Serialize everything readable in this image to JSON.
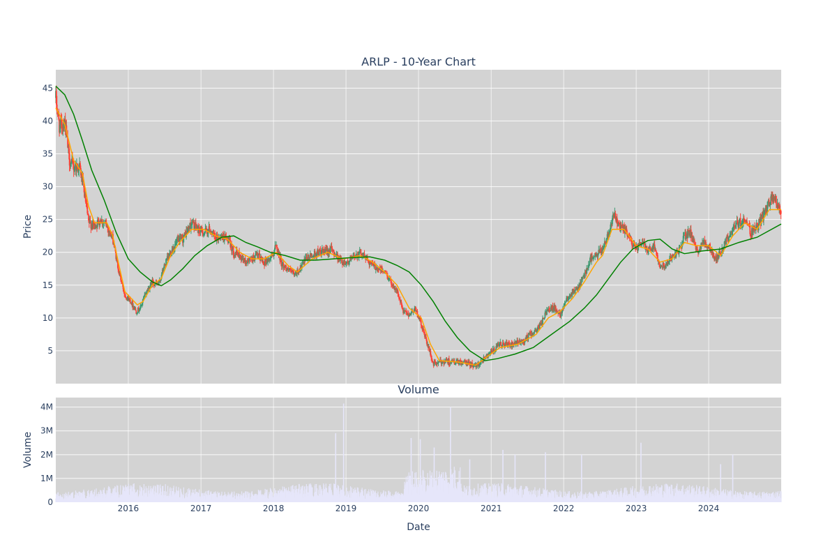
{
  "chart_data": [
    {
      "type": "candlestick",
      "title": "ARLP - 10-Year Chart",
      "ylabel": "Price",
      "ylim": [
        0,
        47.8
      ],
      "yticks": [
        5,
        10,
        15,
        20,
        25,
        30,
        35,
        40,
        45
      ],
      "x_range": [
        "2015-01-01",
        "2024-12-31"
      ],
      "up_color": "#3d9970",
      "down_color": "#ff4136",
      "price_path": [
        [
          "2015-01-01",
          43.5
        ],
        [
          "2015-01-20",
          39.0
        ],
        [
          "2015-02-15",
          40.0
        ],
        [
          "2015-03-10",
          34.0
        ],
        [
          "2015-04-01",
          33.0
        ],
        [
          "2015-05-01",
          33.0
        ],
        [
          "2015-05-20",
          30.0
        ],
        [
          "2015-06-15",
          24.5
        ],
        [
          "2015-07-15",
          24.0
        ],
        [
          "2015-08-15",
          25.0
        ],
        [
          "2015-09-15",
          24.0
        ],
        [
          "2015-10-15",
          22.0
        ],
        [
          "2015-11-15",
          17.0
        ],
        [
          "2015-12-15",
          13.5
        ],
        [
          "2016-01-15",
          12.5
        ],
        [
          "2016-02-10",
          11.0
        ],
        [
          "2016-03-01",
          11.5
        ],
        [
          "2016-04-01",
          14.0
        ],
        [
          "2016-05-01",
          15.5
        ],
        [
          "2016-06-01",
          15.0
        ],
        [
          "2016-07-01",
          18.0
        ],
        [
          "2016-08-01",
          20.0
        ],
        [
          "2016-09-01",
          21.5
        ],
        [
          "2016-10-01",
          22.0
        ],
        [
          "2016-11-15",
          24.5
        ],
        [
          "2016-12-15",
          23.5
        ],
        [
          "2017-01-15",
          23.0
        ],
        [
          "2017-02-15",
          23.5
        ],
        [
          "2017-03-15",
          22.0
        ],
        [
          "2017-04-15",
          22.5
        ],
        [
          "2017-05-15",
          22.0
        ],
        [
          "2017-06-15",
          20.0
        ],
        [
          "2017-07-15",
          19.5
        ],
        [
          "2017-08-15",
          18.5
        ],
        [
          "2017-09-15",
          19.0
        ],
        [
          "2017-10-15",
          19.5
        ],
        [
          "2017-11-15",
          18.5
        ],
        [
          "2017-12-15",
          19.0
        ],
        [
          "2018-01-15",
          21.0
        ],
        [
          "2018-02-15",
          18.0
        ],
        [
          "2018-03-15",
          17.5
        ],
        [
          "2018-04-15",
          16.5
        ],
        [
          "2018-05-15",
          17.5
        ],
        [
          "2018-06-15",
          19.0
        ],
        [
          "2018-07-15",
          19.5
        ],
        [
          "2018-08-15",
          20.0
        ],
        [
          "2018-09-15",
          20.0
        ],
        [
          "2018-10-15",
          20.5
        ],
        [
          "2018-11-15",
          19.5
        ],
        [
          "2018-12-15",
          18.5
        ],
        [
          "2019-01-15",
          18.5
        ],
        [
          "2019-02-15",
          19.5
        ],
        [
          "2019-03-15",
          20.0
        ],
        [
          "2019-04-15",
          19.0
        ],
        [
          "2019-05-15",
          18.0
        ],
        [
          "2019-06-15",
          17.5
        ],
        [
          "2019-07-15",
          17.0
        ],
        [
          "2019-08-15",
          15.5
        ],
        [
          "2019-09-15",
          14.0
        ],
        [
          "2019-10-15",
          11.0
        ],
        [
          "2019-11-15",
          10.5
        ],
        [
          "2019-12-15",
          11.5
        ],
        [
          "2020-01-15",
          9.0
        ],
        [
          "2020-02-15",
          6.0
        ],
        [
          "2020-03-15",
          3.0
        ],
        [
          "2020-04-15",
          3.2
        ],
        [
          "2020-05-15",
          3.5
        ],
        [
          "2020-06-15",
          3.3
        ],
        [
          "2020-07-15",
          3.2
        ],
        [
          "2020-08-15",
          3.2
        ],
        [
          "2020-09-15",
          3.0
        ],
        [
          "2020-10-15",
          2.7
        ],
        [
          "2020-11-15",
          3.5
        ],
        [
          "2020-12-15",
          4.5
        ],
        [
          "2021-01-15",
          5.0
        ],
        [
          "2021-02-15",
          6.0
        ],
        [
          "2021-03-15",
          6.0
        ],
        [
          "2021-04-15",
          5.8
        ],
        [
          "2021-05-15",
          6.2
        ],
        [
          "2021-06-15",
          6.5
        ],
        [
          "2021-07-15",
          7.5
        ],
        [
          "2021-08-15",
          8.0
        ],
        [
          "2021-09-15",
          9.5
        ],
        [
          "2021-10-15",
          11.5
        ],
        [
          "2021-11-15",
          11.5
        ],
        [
          "2021-12-15",
          10.5
        ],
        [
          "2022-01-15",
          13.0
        ],
        [
          "2022-02-15",
          14.0
        ],
        [
          "2022-03-15",
          14.5
        ],
        [
          "2022-04-15",
          16.5
        ],
        [
          "2022-05-15",
          19.0
        ],
        [
          "2022-06-15",
          19.5
        ],
        [
          "2022-07-15",
          20.5
        ],
        [
          "2022-08-15",
          23.0
        ],
        [
          "2022-09-10",
          26.0
        ],
        [
          "2022-10-01",
          24.0
        ],
        [
          "2022-11-01",
          23.5
        ],
        [
          "2022-12-01",
          22.0
        ],
        [
          "2023-01-01",
          20.5
        ],
        [
          "2023-02-01",
          21.5
        ],
        [
          "2023-03-01",
          20.5
        ],
        [
          "2023-04-01",
          21.0
        ],
        [
          "2023-05-01",
          18.0
        ],
        [
          "2023-06-01",
          18.0
        ],
        [
          "2023-07-01",
          19.5
        ],
        [
          "2023-08-01",
          20.0
        ],
        [
          "2023-09-01",
          22.5
        ],
        [
          "2023-10-01",
          23.0
        ],
        [
          "2023-11-01",
          20.0
        ],
        [
          "2023-12-01",
          21.5
        ],
        [
          "2024-01-01",
          21.0
        ],
        [
          "2024-02-01",
          19.0
        ],
        [
          "2024-03-01",
          20.0
        ],
        [
          "2024-04-01",
          22.0
        ],
        [
          "2024-05-01",
          23.5
        ],
        [
          "2024-06-01",
          24.5
        ],
        [
          "2024-07-01",
          25.0
        ],
        [
          "2024-08-01",
          23.0
        ],
        [
          "2024-09-01",
          24.0
        ],
        [
          "2024-10-01",
          25.5
        ],
        [
          "2024-11-01",
          27.5
        ],
        [
          "2024-11-25",
          28.5
        ],
        [
          "2024-12-31",
          26.0
        ]
      ],
      "series": [
        {
          "color": "#ffa500",
          "points": [
            [
              "2015-01-01",
              42.0
            ],
            [
              "2015-02-15",
              39.5
            ],
            [
              "2015-04-01",
              34.0
            ],
            [
              "2015-05-15",
              32.0
            ],
            [
              "2015-06-15",
              27.0
            ],
            [
              "2015-07-15",
              24.5
            ],
            [
              "2015-09-15",
              24.5
            ],
            [
              "2015-10-15",
              22.5
            ],
            [
              "2015-11-15",
              18.0
            ],
            [
              "2015-12-15",
              14.0
            ],
            [
              "2016-02-15",
              12.0
            ],
            [
              "2016-03-15",
              12.5
            ],
            [
              "2016-05-01",
              15.0
            ],
            [
              "2016-06-15",
              16.0
            ],
            [
              "2016-08-01",
              19.5
            ],
            [
              "2016-09-15",
              21.5
            ],
            [
              "2016-11-15",
              23.5
            ],
            [
              "2017-01-15",
              23.5
            ],
            [
              "2017-03-15",
              22.5
            ],
            [
              "2017-05-15",
              22.0
            ],
            [
              "2017-07-15",
              20.0
            ],
            [
              "2017-09-15",
              19.0
            ],
            [
              "2017-11-15",
              19.0
            ],
            [
              "2018-01-15",
              20.0
            ],
            [
              "2018-03-15",
              18.0
            ],
            [
              "2018-05-01",
              17.0
            ],
            [
              "2018-07-15",
              19.0
            ],
            [
              "2018-10-01",
              20.0
            ],
            [
              "2018-12-15",
              19.0
            ],
            [
              "2019-03-15",
              19.5
            ],
            [
              "2019-05-15",
              18.5
            ],
            [
              "2019-07-15",
              17.0
            ],
            [
              "2019-09-15",
              15.0
            ],
            [
              "2019-11-15",
              11.5
            ],
            [
              "2020-01-15",
              10.0
            ],
            [
              "2020-03-01",
              6.0
            ],
            [
              "2020-04-15",
              3.5
            ],
            [
              "2020-07-15",
              3.3
            ],
            [
              "2020-10-15",
              2.8
            ],
            [
              "2020-12-15",
              4.2
            ],
            [
              "2021-02-15",
              5.5
            ],
            [
              "2021-05-15",
              6.0
            ],
            [
              "2021-08-15",
              7.5
            ],
            [
              "2021-10-15",
              10.0
            ],
            [
              "2021-12-15",
              11.0
            ],
            [
              "2022-02-15",
              13.0
            ],
            [
              "2022-04-15",
              15.5
            ],
            [
              "2022-06-15",
              18.5
            ],
            [
              "2022-07-15",
              19.5
            ],
            [
              "2022-09-01",
              23.5
            ],
            [
              "2022-11-01",
              23.5
            ],
            [
              "2023-01-01",
              21.0
            ],
            [
              "2023-03-01",
              20.5
            ],
            [
              "2023-05-01",
              18.5
            ],
            [
              "2023-07-01",
              19.0
            ],
            [
              "2023-09-01",
              21.5
            ],
            [
              "2023-11-01",
              21.0
            ],
            [
              "2024-01-01",
              21.0
            ],
            [
              "2024-03-01",
              19.5
            ],
            [
              "2024-05-01",
              22.5
            ],
            [
              "2024-07-01",
              24.5
            ],
            [
              "2024-09-01",
              23.5
            ],
            [
              "2024-11-01",
              26.5
            ],
            [
              "2024-12-31",
              26.5
            ]
          ]
        },
        {
          "color": "#008000",
          "points": [
            [
              "2015-01-01",
              45.3
            ],
            [
              "2015-02-15",
              44.0
            ],
            [
              "2015-04-01",
              41.0
            ],
            [
              "2015-05-15",
              37.0
            ],
            [
              "2015-07-01",
              32.5
            ],
            [
              "2015-09-01",
              28.0
            ],
            [
              "2015-11-01",
              23.0
            ],
            [
              "2016-01-01",
              19.0
            ],
            [
              "2016-03-01",
              17.0
            ],
            [
              "2016-05-01",
              15.5
            ],
            [
              "2016-06-15",
              14.9
            ],
            [
              "2016-08-01",
              15.8
            ],
            [
              "2016-10-01",
              17.5
            ],
            [
              "2016-12-01",
              19.5
            ],
            [
              "2017-02-01",
              21.0
            ],
            [
              "2017-04-15",
              22.3
            ],
            [
              "2017-06-15",
              22.5
            ],
            [
              "2017-08-15",
              21.5
            ],
            [
              "2017-10-15",
              20.8
            ],
            [
              "2017-12-15",
              20.0
            ],
            [
              "2018-03-01",
              19.5
            ],
            [
              "2018-05-15",
              18.8
            ],
            [
              "2018-08-01",
              18.8
            ],
            [
              "2018-11-01",
              19.0
            ],
            [
              "2019-02-01",
              19.2
            ],
            [
              "2019-05-01",
              19.3
            ],
            [
              "2019-07-15",
              18.8
            ],
            [
              "2019-09-15",
              18.0
            ],
            [
              "2019-11-15",
              17.0
            ],
            [
              "2020-01-15",
              15.0
            ],
            [
              "2020-03-15",
              12.5
            ],
            [
              "2020-05-15",
              9.5
            ],
            [
              "2020-07-15",
              7.0
            ],
            [
              "2020-09-15",
              5.0
            ],
            [
              "2020-12-01",
              3.5
            ],
            [
              "2021-02-01",
              3.8
            ],
            [
              "2021-05-01",
              4.5
            ],
            [
              "2021-08-01",
              5.5
            ],
            [
              "2021-11-01",
              7.5
            ],
            [
              "2022-02-01",
              9.5
            ],
            [
              "2022-04-15",
              11.5
            ],
            [
              "2022-06-15",
              13.5
            ],
            [
              "2022-08-15",
              16.0
            ],
            [
              "2022-10-15",
              18.5
            ],
            [
              "2022-12-15",
              20.5
            ],
            [
              "2023-03-01",
              21.8
            ],
            [
              "2023-05-01",
              22.0
            ],
            [
              "2023-07-01",
              20.5
            ],
            [
              "2023-09-01",
              19.8
            ],
            [
              "2023-12-01",
              20.2
            ],
            [
              "2024-03-01",
              20.5
            ],
            [
              "2024-06-01",
              21.5
            ],
            [
              "2024-09-01",
              22.3
            ],
            [
              "2024-12-31",
              24.3
            ]
          ]
        }
      ]
    },
    {
      "type": "bar",
      "title": "Volume",
      "xlabel": "Date",
      "ylabel": "Volume",
      "ylim": [
        0,
        4400000
      ],
      "yticks": [
        0,
        1000000,
        2000000,
        3000000,
        4000000
      ],
      "ytick_labels": [
        "0",
        "1M",
        "2M",
        "3M",
        "4M"
      ],
      "xticks": [
        "2016-01-01",
        "2017-01-01",
        "2018-01-01",
        "2019-01-01",
        "2020-01-01",
        "2021-01-01",
        "2022-01-01",
        "2023-01-01",
        "2024-01-01"
      ],
      "xtick_labels": [
        "2016",
        "2017",
        "2018",
        "2019",
        "2020",
        "2021",
        "2022",
        "2023",
        "2024"
      ],
      "bar_color": "#e6e6fa",
      "spikes": [
        [
          "2018-11-10",
          2900000
        ],
        [
          "2018-12-20",
          4150000
        ],
        [
          "2019-11-25",
          2700000
        ],
        [
          "2020-01-10",
          2650000
        ],
        [
          "2020-03-20",
          2300000
        ],
        [
          "2020-06-10",
          4000000
        ],
        [
          "2020-09-15",
          1800000
        ],
        [
          "2021-03-01",
          2200000
        ],
        [
          "2021-05-01",
          2000000
        ],
        [
          "2021-10-01",
          2100000
        ],
        [
          "2022-04-01",
          2000000
        ],
        [
          "2023-01-25",
          2500000
        ],
        [
          "2024-03-01",
          1600000
        ],
        [
          "2024-05-01",
          2000000
        ]
      ]
    }
  ]
}
